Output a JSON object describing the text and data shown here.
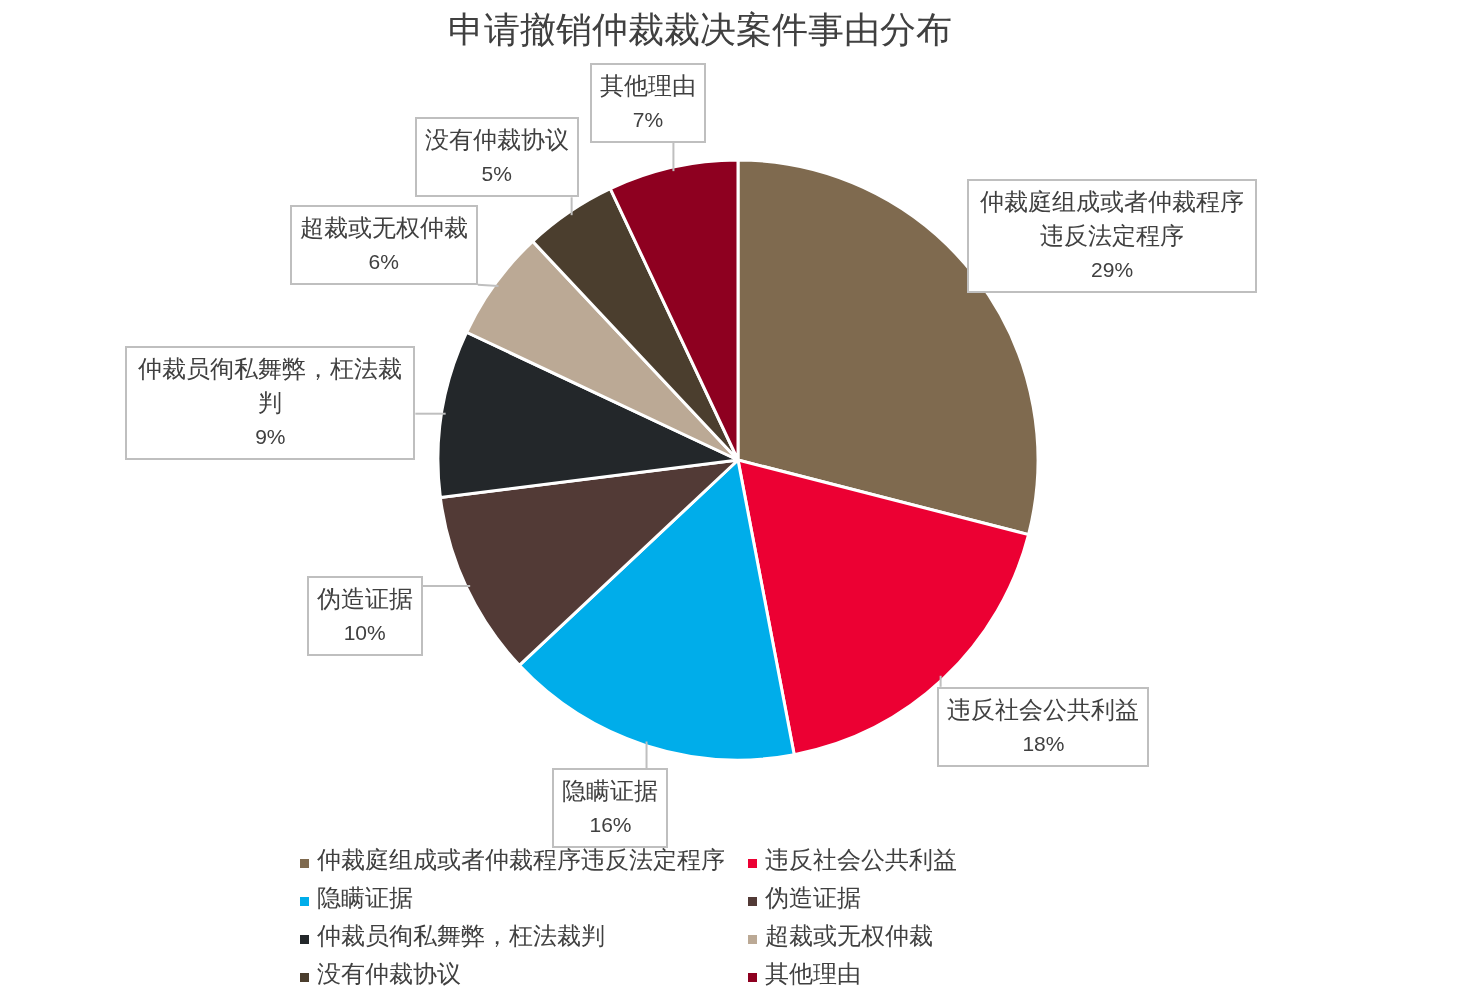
{
  "chart_data": {
    "type": "pie",
    "title": "申请撤销仲裁裁决案件事由分布",
    "categories": [
      "仲裁庭组成或者仲裁程序违反法定程序",
      "违反社会公共利益",
      "隐瞒证据",
      "伪造证据",
      "仲裁员徇私舞弊，枉法裁判",
      "超裁或无权仲裁",
      "没有仲裁协议",
      "其他理由"
    ],
    "values": [
      29,
      18,
      16,
      10,
      9,
      6,
      5,
      7
    ],
    "value_labels": [
      "29%",
      "18%",
      "16%",
      "10%",
      "9%",
      "6%",
      "5%",
      "7%"
    ],
    "colors": [
      "#7f6a4f",
      "#ec0033",
      "#00adea",
      "#523a36",
      "#23272a",
      "#bba995",
      "#4b3e2e",
      "#8e0020"
    ],
    "legend": "bottom"
  }
}
